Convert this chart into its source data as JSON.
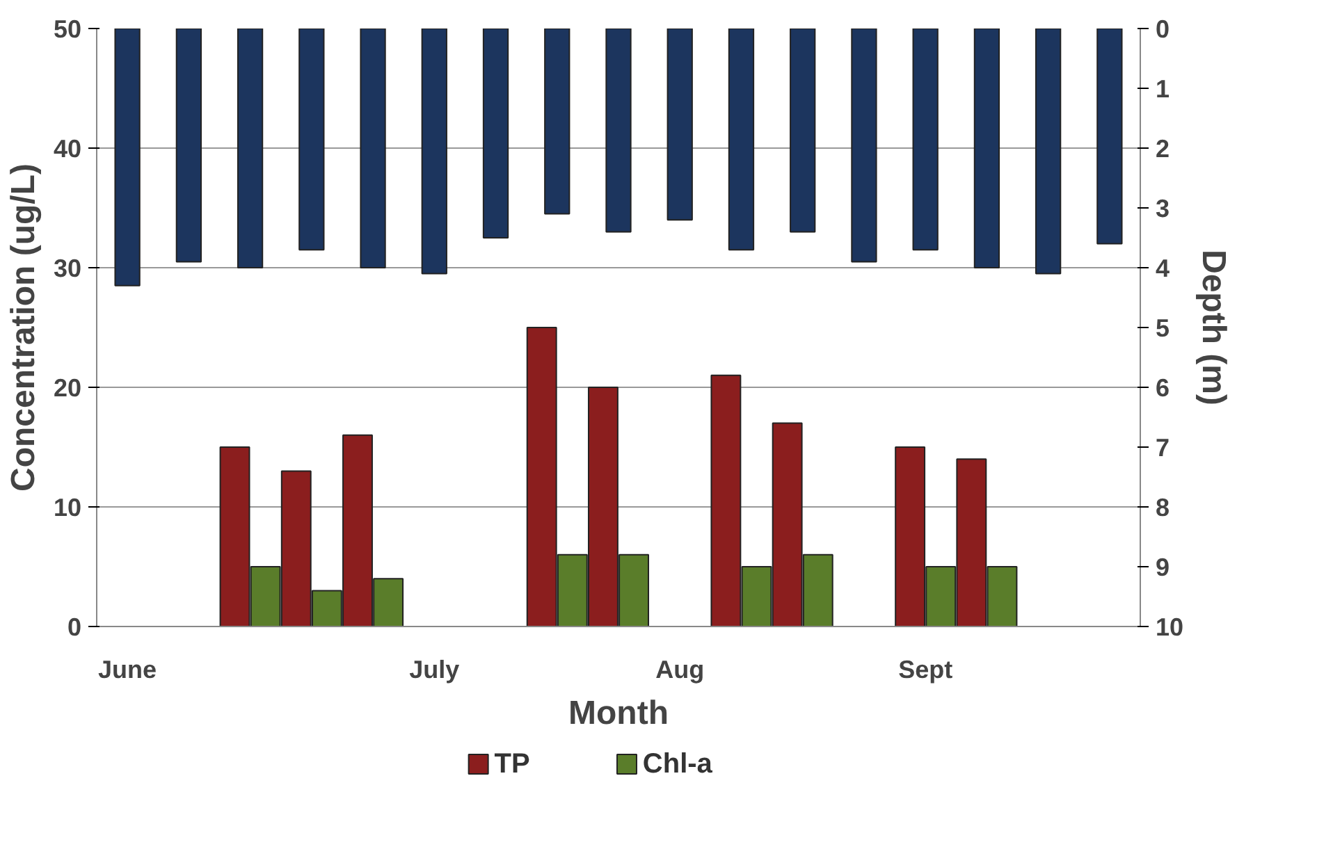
{
  "chart_data": {
    "type": "bar",
    "xlabel": "Month",
    "ylabel": "Concentration (ug/L)",
    "y2label": "Depth (m)",
    "categories": [
      "June",
      null,
      null,
      null,
      null,
      "July",
      null,
      null,
      null,
      "Aug",
      null,
      null,
      null,
      "Sept",
      null,
      null,
      null
    ],
    "series": [
      {
        "name": "TP",
        "color": "#8b1e1e",
        "values": [
          null,
          null,
          15,
          13,
          16,
          null,
          null,
          25,
          20,
          null,
          21,
          17,
          null,
          15,
          14,
          null,
          null
        ]
      },
      {
        "name": "Chl-a",
        "color": "#5a7d2a",
        "values": [
          null,
          null,
          5,
          3,
          4,
          null,
          null,
          6,
          6,
          null,
          5,
          6,
          null,
          5,
          5,
          null,
          null
        ]
      },
      {
        "color": "#1c355e",
        "axis": "y2",
        "values": [
          4.3,
          3.9,
          4.0,
          3.7,
          4.0,
          4.1,
          3.5,
          3.1,
          3.4,
          3.2,
          3.7,
          3.4,
          3.9,
          3.7,
          4.0,
          4.1,
          3.6
        ]
      }
    ],
    "ylim": [
      0,
      50
    ],
    "yticks": [
      0,
      10,
      20,
      30,
      40,
      50
    ],
    "y2lim": [
      10,
      0
    ],
    "y2ticks": [
      0,
      1,
      2,
      3,
      4,
      5,
      6,
      7,
      8,
      9,
      10
    ],
    "grid": "y",
    "legend": "bottom"
  }
}
